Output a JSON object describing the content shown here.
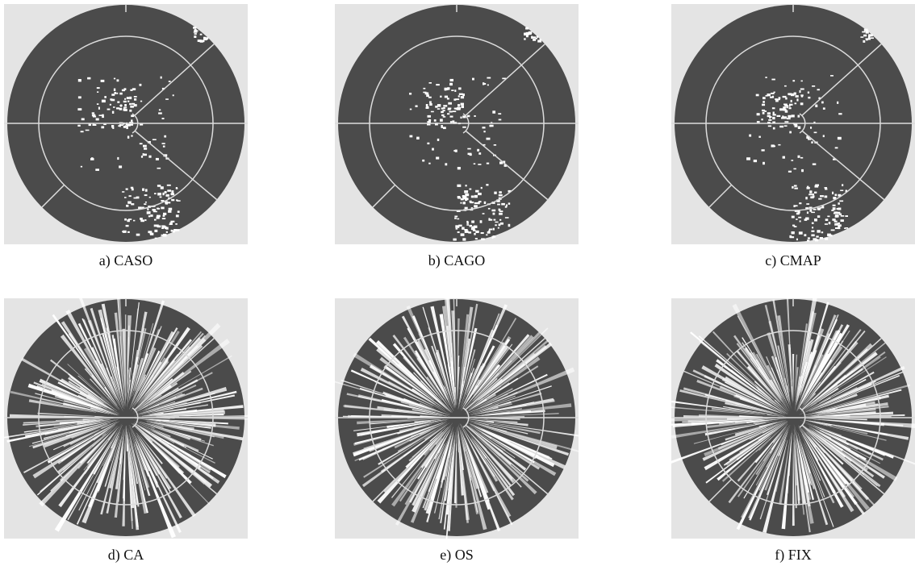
{
  "panels": [
    {
      "caption": "a) CASO"
    },
    {
      "caption": "b) CAGO"
    },
    {
      "caption": "c) CMAP"
    },
    {
      "caption": "d) CA"
    },
    {
      "caption": "e) OS"
    },
    {
      "caption": "f) FIX"
    }
  ]
}
